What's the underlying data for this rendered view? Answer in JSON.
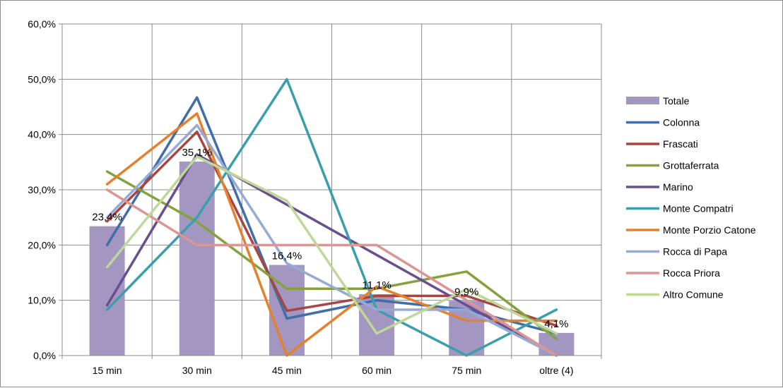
{
  "chart_data": {
    "type": "bar+line",
    "title": "",
    "xlabel": "",
    "ylabel": "",
    "ylim": [
      0,
      0.6
    ],
    "y_ticks": [
      "0,0%",
      "10,0%",
      "20,0%",
      "30,0%",
      "40,0%",
      "50,0%",
      "60,0%"
    ],
    "categories": [
      "15 min",
      "30 min",
      "45 min",
      "60 min",
      "75 min",
      "oltre  (4)"
    ],
    "grid": "vertical and horizontal",
    "legend": "right",
    "bar_series": {
      "name": "Totale",
      "color": "#A397C1",
      "values": [
        0.234,
        0.351,
        0.164,
        0.111,
        0.099,
        0.041
      ],
      "labels": [
        "23,4%",
        "35,1%",
        "16,4%",
        "11,1%",
        "9,9%",
        "4,1%"
      ]
    },
    "series": [
      {
        "name": "Colonna",
        "color": "#3F6EA9",
        "values": [
          0.2,
          0.467,
          0.067,
          0.1,
          0.083,
          0.04
        ]
      },
      {
        "name": "Frascati",
        "color": "#A84541",
        "values": [
          0.243,
          0.405,
          0.081,
          0.108,
          0.108,
          0.054
        ]
      },
      {
        "name": "Grottaferrata",
        "color": "#85A23D",
        "values": [
          0.333,
          0.242,
          0.121,
          0.121,
          0.152,
          0.03
        ]
      },
      {
        "name": "Marino",
        "color": "#6A4F8E",
        "values": [
          0.091,
          0.364,
          0.273,
          0.182,
          0.091,
          0.0
        ]
      },
      {
        "name": "Monte Compatri",
        "color": "#3A9EAF",
        "values": [
          0.083,
          0.25,
          0.5,
          0.083,
          0.0,
          0.083
        ]
      },
      {
        "name": "Monte Porzio Catone",
        "color": "#E6802C",
        "values": [
          0.31,
          0.438,
          0.0,
          0.125,
          0.063,
          0.063
        ]
      },
      {
        "name": "Rocca di Papa",
        "color": "#95AAD6",
        "values": [
          0.25,
          0.417,
          0.167,
          0.083,
          0.083,
          0.0
        ]
      },
      {
        "name": "Rocca Priora",
        "color": "#DB9594",
        "values": [
          0.3,
          0.2,
          0.2,
          0.2,
          0.1,
          0.0
        ]
      },
      {
        "name": "Altro Comune",
        "color": "#BDD897",
        "values": [
          0.16,
          0.36,
          0.28,
          0.04,
          0.12,
          0.04
        ]
      }
    ]
  }
}
